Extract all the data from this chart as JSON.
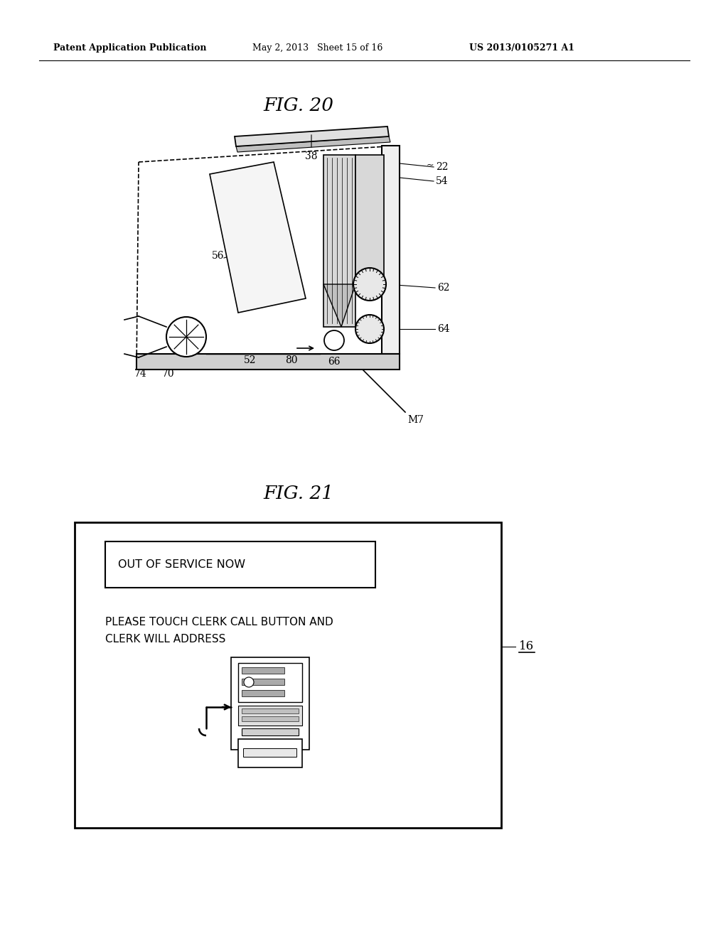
{
  "bg_color": "#ffffff",
  "header_left": "Patent Application Publication",
  "header_mid": "May 2, 2013   Sheet 15 of 16",
  "header_right": "US 2013/0105271 A1",
  "fig20_title": "FIG. 20",
  "fig21_title": "FIG. 21",
  "label_16": "16",
  "msg_box_text": "OUT OF SERVICE NOW",
  "body_text_line1": "PLEASE TOUCH CLERK CALL BUTTON AND",
  "body_text_line2": "CLERK WILL ADDRESS"
}
